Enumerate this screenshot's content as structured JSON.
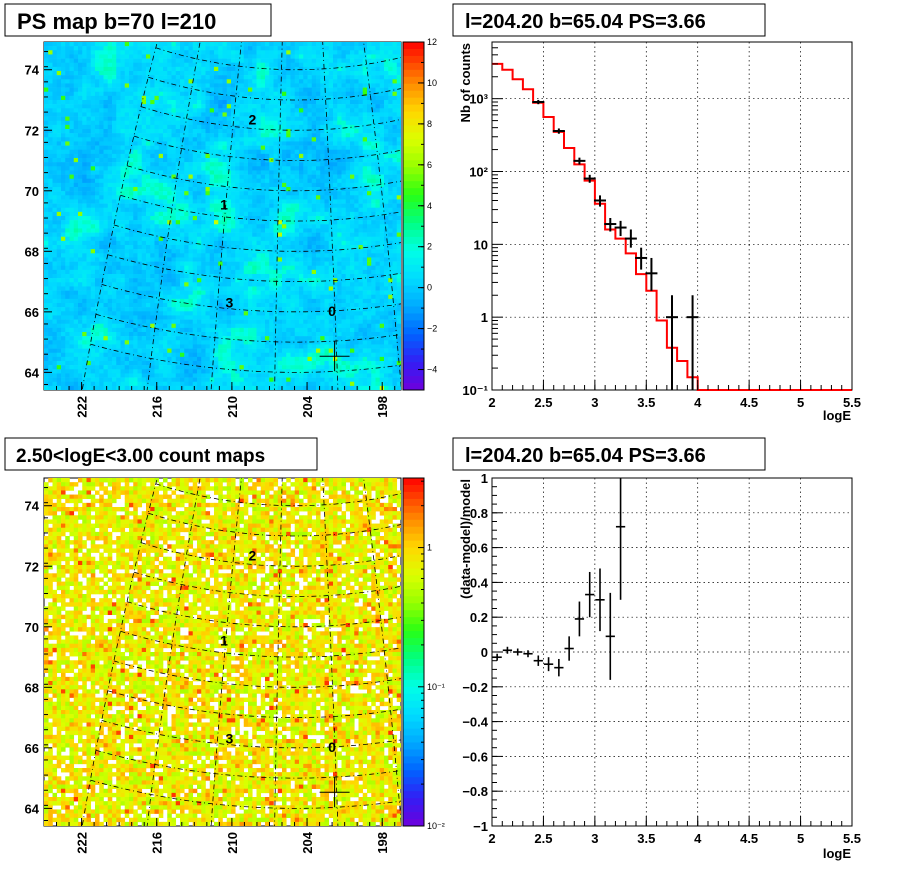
{
  "chart_data": [
    {
      "type": "heatmap",
      "title": "PS map b=70 l=210",
      "x_tick_labels": [
        "222",
        "216",
        "210",
        "204",
        "198"
      ],
      "y_tick_labels": [
        "74",
        "72",
        "70",
        "68",
        "66",
        "64"
      ],
      "x_ticks": [
        222,
        216,
        210,
        204,
        198
      ],
      "xlim": [
        225,
        196.5
      ],
      "y_ticks": [
        74,
        72,
        70,
        68,
        66,
        64
      ],
      "ylim": [
        63.55,
        74.85
      ],
      "colorbar": {
        "scale": "linear",
        "range": [
          -5,
          12
        ],
        "tick_labels": [
          "12",
          "10",
          "8",
          "6",
          "4",
          "2",
          "0",
          "−2",
          "−4"
        ],
        "tick_values": [
          12,
          10,
          8,
          6,
          4,
          2,
          0,
          -2,
          -4
        ]
      },
      "source_labels": [
        {
          "text": "2",
          "l": 213.6,
          "b": 72.3
        },
        {
          "text": "1",
          "l": 216.2,
          "b": 69.4
        },
        {
          "text": "3",
          "l": 214.8,
          "b": 66.2
        },
        {
          "text": "0",
          "l": 204.3,
          "b": 66.0
        }
      ],
      "marker": {
        "l": 204.2,
        "b": 64.5
      }
    },
    {
      "type": "line",
      "title": "l=204.20 b=65.04 PS=3.66",
      "xlabel": "logE",
      "ylabel": "Nb of counts",
      "yscale": "log",
      "xlim": [
        2,
        5.5
      ],
      "ylim": [
        0.1,
        6000
      ],
      "grid": true,
      "x_tick_labels": [
        "2",
        "2.5",
        "3",
        "3.5",
        "4",
        "4.5",
        "5",
        "5.5"
      ],
      "x_ticks": [
        2,
        2.5,
        3,
        3.5,
        4,
        4.5,
        5,
        5.5
      ],
      "y_tick_labels": [
        "10³",
        "10²",
        "10",
        "1",
        "10⁻¹"
      ],
      "y_ticks": [
        1000,
        100,
        10,
        1,
        0.1
      ],
      "series": [
        {
          "color": "#ff0000",
          "bin_edges": [
            2,
            2.1,
            2.2,
            2.3,
            2.4,
            2.5,
            2.6,
            2.7,
            2.8,
            2.9,
            3.0,
            3.1,
            3.2,
            3.3,
            3.4,
            3.5,
            3.6,
            3.7,
            3.8,
            3.9,
            4.0,
            4.1,
            4.2,
            4.3,
            4.4,
            4.5,
            4.6,
            4.7,
            4.8,
            4.9,
            5.0,
            5.1,
            5.2,
            5.3,
            5.4,
            5.5
          ],
          "values": [
            3000,
            2500,
            1850,
            1350,
            880,
            560,
            350,
            210,
            125,
            75,
            36,
            16,
            12,
            7.5,
            3.9,
            2.3,
            0.9,
            0.38,
            0.25,
            0.15,
            0.1,
            0.1,
            0.1,
            0.1,
            0.1,
            0.1,
            0.1,
            0.1,
            0.1,
            0.1,
            0.1,
            0.1,
            0.1,
            0.1,
            0.1
          ]
        },
        {
          "type": "errorbar",
          "color": "#000000",
          "x": [
            2.45,
            2.65,
            2.85,
            2.95,
            3.05,
            3.15,
            3.25,
            3.35,
            3.45,
            3.55,
            3.75,
            3.95
          ],
          "y": [
            900,
            360,
            140,
            80,
            40,
            19,
            17,
            12,
            6.5,
            4,
            1,
            1
          ],
          "y_low": [
            840,
            330,
            125,
            70,
            33,
            15,
            13,
            9,
            4.5,
            2.3,
            0.1,
            0.1
          ],
          "y_high": [
            960,
            390,
            155,
            90,
            47,
            23,
            21,
            16,
            9,
            6.5,
            2,
            2
          ]
        }
      ]
    },
    {
      "type": "heatmap",
      "title": "2.50<logE<3.00 count maps",
      "x_tick_labels": [
        "222",
        "216",
        "210",
        "204",
        "198"
      ],
      "y_tick_labels": [
        "74",
        "72",
        "70",
        "68",
        "66",
        "64"
      ],
      "x_ticks": [
        222,
        216,
        210,
        204,
        198
      ],
      "xlim": [
        225,
        196.5
      ],
      "y_ticks": [
        74,
        72,
        70,
        68,
        66,
        64
      ],
      "ylim": [
        63.55,
        74.85
      ],
      "colorbar": {
        "scale": "log",
        "range": [
          0.01,
          3.162
        ],
        "tick_labels": [
          "1",
          "10⁻¹",
          "10⁻²"
        ],
        "tick_values": [
          1,
          0.1,
          0.01
        ]
      },
      "source_labels": [
        {
          "text": "2",
          "l": 213.6,
          "b": 72.3
        },
        {
          "text": "1",
          "l": 216.2,
          "b": 69.4
        },
        {
          "text": "3",
          "l": 214.8,
          "b": 66.2
        },
        {
          "text": "0",
          "l": 204.3,
          "b": 66.0
        }
      ],
      "marker": {
        "l": 204.2,
        "b": 64.5
      }
    },
    {
      "type": "scatter",
      "title": "l=204.20 b=65.04 PS=3.66",
      "xlabel": "logE",
      "ylabel": "(data-model)/model",
      "xlim": [
        2,
        5.5
      ],
      "ylim": [
        -1,
        1
      ],
      "grid": true,
      "x_tick_labels": [
        "2",
        "2.5",
        "3",
        "3.5",
        "4",
        "4.5",
        "5",
        "5.5"
      ],
      "x_ticks": [
        2,
        2.5,
        3,
        3.5,
        4,
        4.5,
        5,
        5.5
      ],
      "y_tick_labels": [
        "1",
        "0.8",
        "0.6",
        "0.4",
        "0.2",
        "0",
        "−0.2",
        "−0.4",
        "−0.6",
        "−0.8",
        "−1"
      ],
      "y_ticks": [
        1,
        0.8,
        0.6,
        0.4,
        0.2,
        0,
        -0.2,
        -0.4,
        -0.6,
        -0.8,
        -1
      ],
      "series": [
        {
          "type": "errorbar",
          "color": "#000000",
          "x": [
            2.05,
            2.15,
            2.25,
            2.35,
            2.45,
            2.55,
            2.65,
            2.75,
            2.85,
            2.95,
            3.05,
            3.15,
            3.25
          ],
          "y": [
            -0.03,
            0.01,
            0.0,
            -0.01,
            -0.05,
            -0.07,
            -0.09,
            0.02,
            0.19,
            0.33,
            0.3,
            0.09,
            0.72
          ],
          "err": [
            0.02,
            0.02,
            0.02,
            0.02,
            0.03,
            0.04,
            0.05,
            0.07,
            0.1,
            0.13,
            0.18,
            0.25,
            0.42
          ],
          "xerr": 0.05
        }
      ]
    }
  ]
}
